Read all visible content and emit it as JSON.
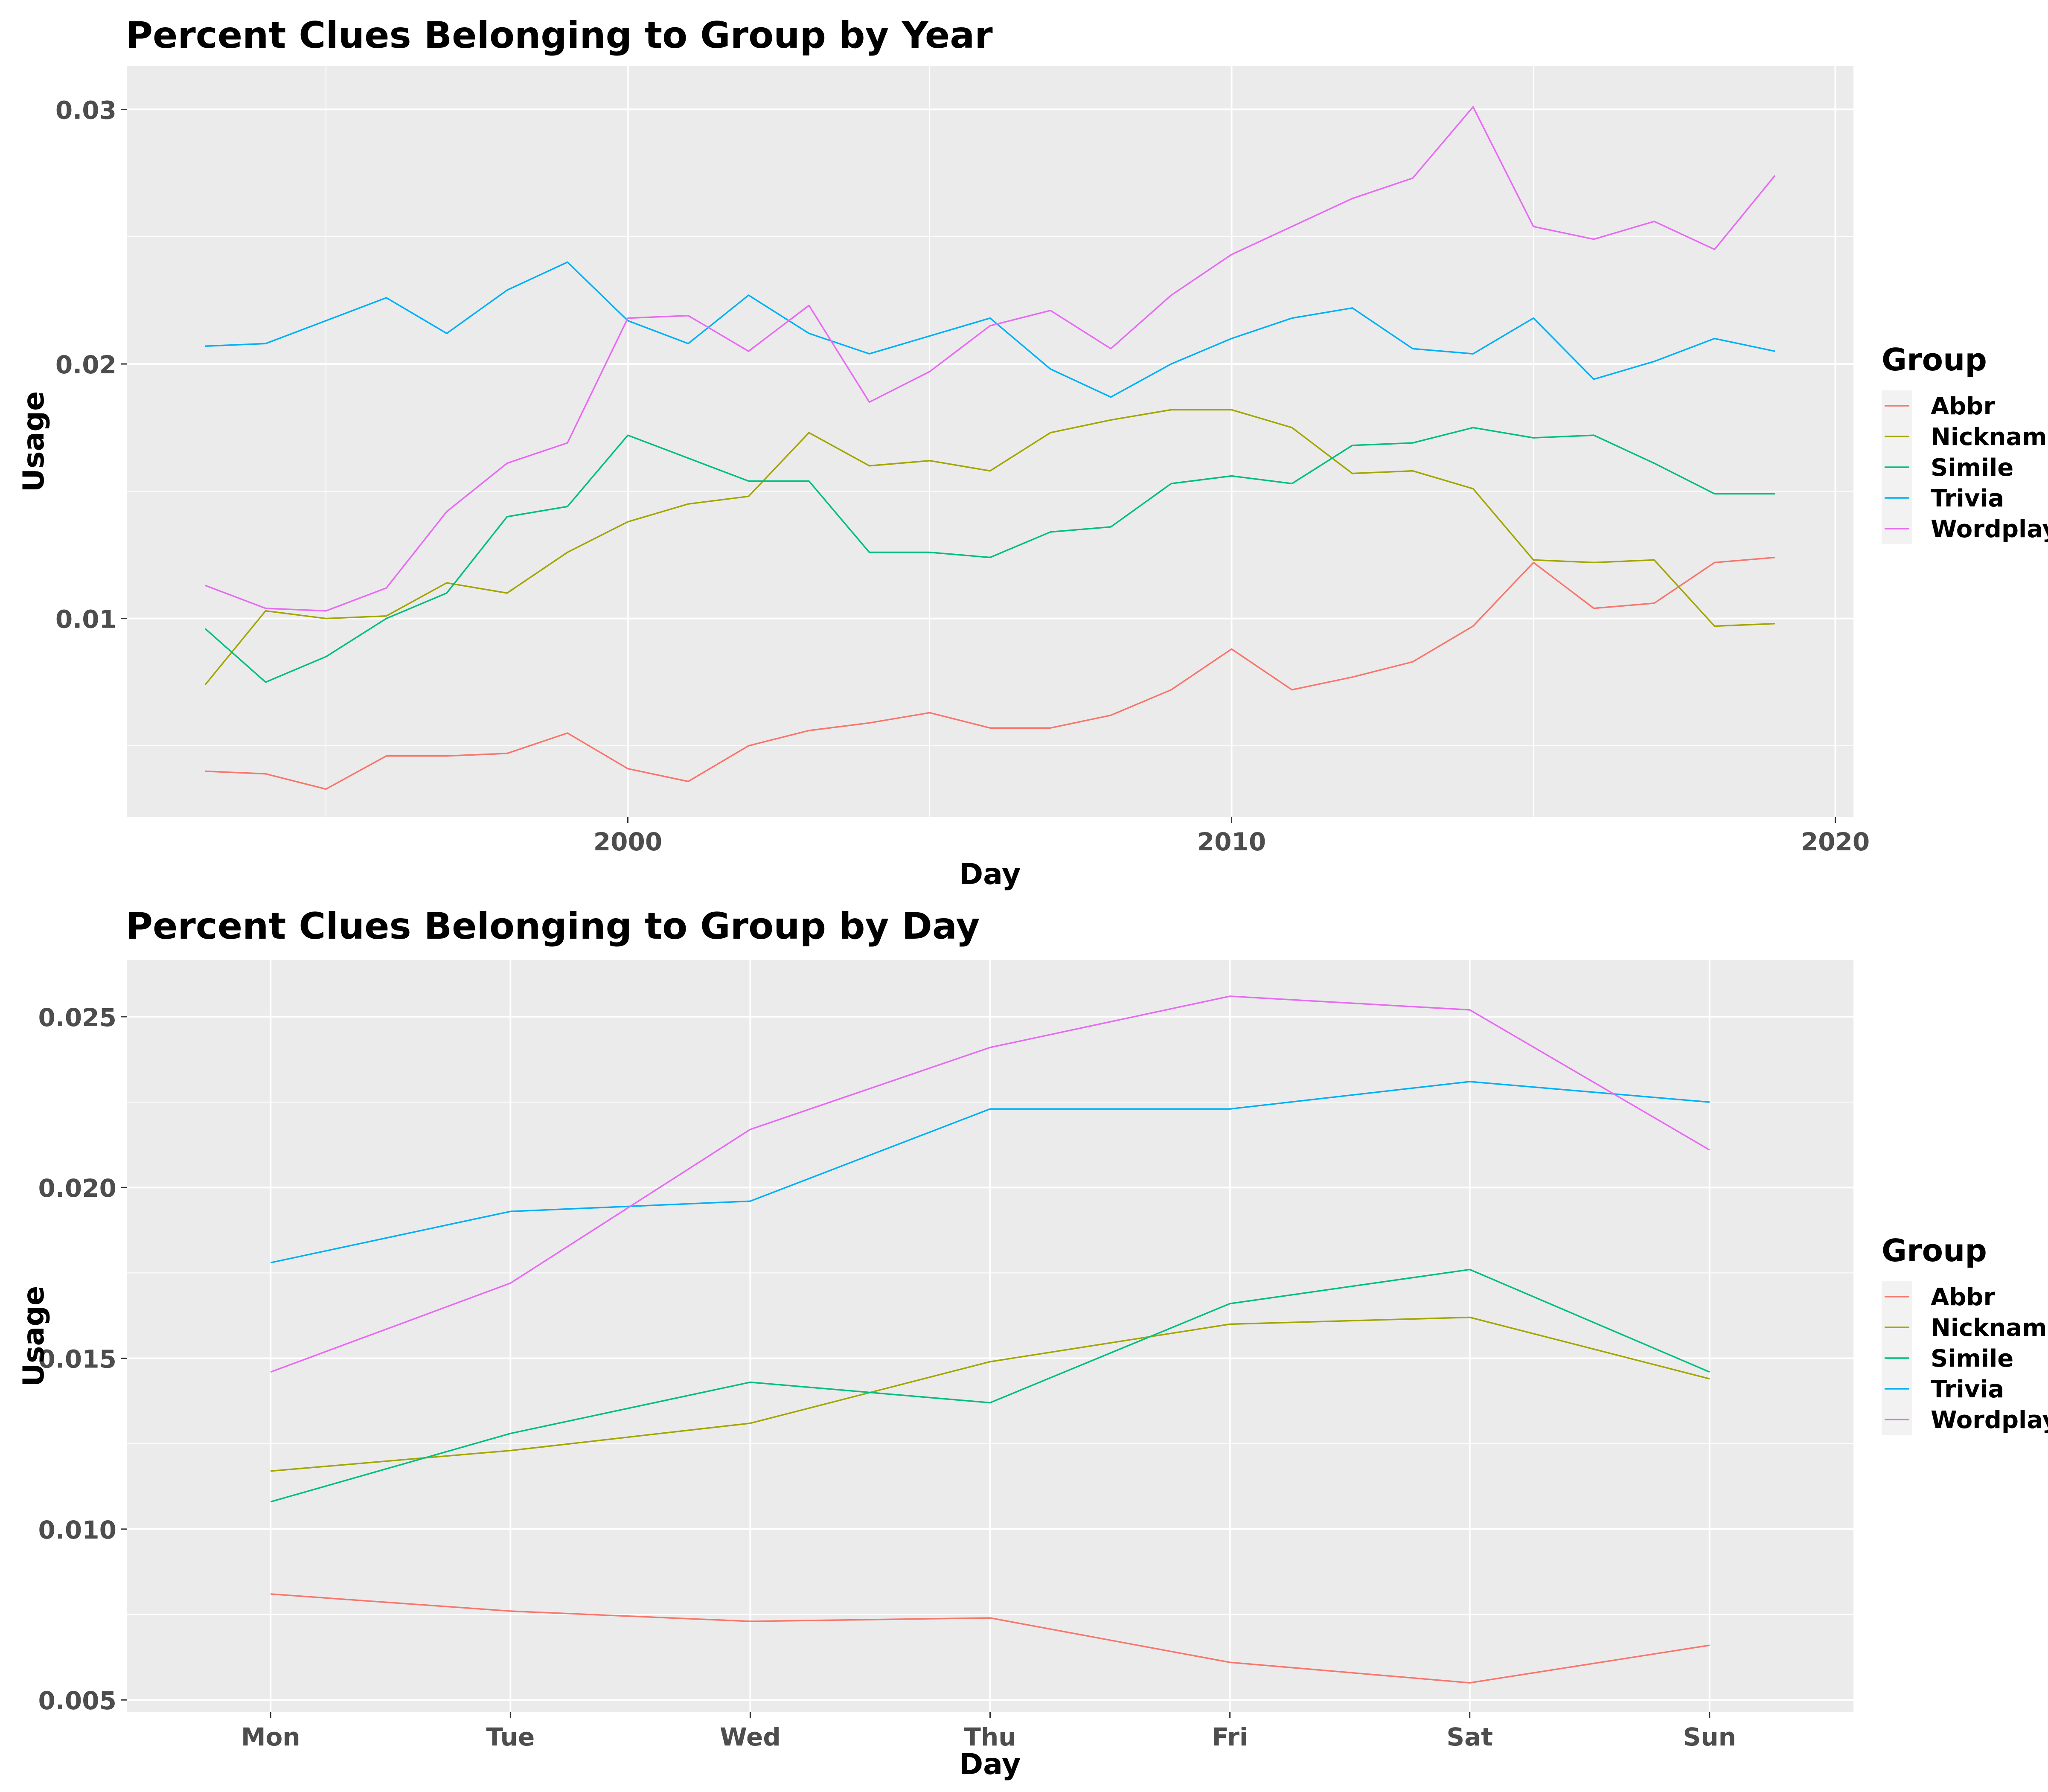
{
  "chart_data": [
    {
      "type": "line",
      "title": "Percent Clues Belonging to Group by Year",
      "xlabel": "Day",
      "ylabel": "Usage",
      "xlim": [
        1991.7,
        2020.3
      ],
      "ylim": [
        0.0022,
        0.0317
      ],
      "x_ticks": [
        2000,
        2010,
        2020
      ],
      "x_tick_labels": [
        "2000",
        "2010",
        "2020"
      ],
      "y_ticks": [
        0.01,
        0.02,
        0.03
      ],
      "y_tick_labels": [
        "0.01",
        "0.02",
        "0.03"
      ],
      "grid": true,
      "legend_title": "Group",
      "legend_position": "right",
      "x": [
        1993,
        1994,
        1995,
        1996,
        1997,
        1998,
        1999,
        2000,
        2001,
        2002,
        2003,
        2004,
        2005,
        2006,
        2007,
        2008,
        2009,
        2010,
        2011,
        2012,
        2013,
        2014,
        2015,
        2016,
        2017,
        2018,
        2019
      ],
      "series": [
        {
          "name": "Abbr",
          "color": "#F8766D",
          "values": [
            0.004,
            0.0039,
            0.0033,
            0.0046,
            0.0046,
            0.0047,
            0.0055,
            0.0041,
            0.0036,
            0.005,
            0.0056,
            0.0059,
            0.0063,
            0.0057,
            0.0057,
            0.0062,
            0.0072,
            0.0088,
            0.0072,
            0.0077,
            0.0083,
            0.0097,
            0.0122,
            0.0104,
            0.0106,
            0.0122,
            0.0124
          ]
        },
        {
          "name": "Nickname",
          "color": "#A3A500",
          "values": [
            0.0074,
            0.0103,
            0.01,
            0.0101,
            0.0114,
            0.011,
            0.0126,
            0.0138,
            0.0145,
            0.0148,
            0.0173,
            0.016,
            0.0162,
            0.0158,
            0.0173,
            0.0178,
            0.0182,
            0.0182,
            0.0175,
            0.0157,
            0.0158,
            0.0151,
            0.0123,
            0.0122,
            0.0123,
            0.0097,
            0.0098
          ]
        },
        {
          "name": "Simile",
          "color": "#00BF7D",
          "values": [
            0.0096,
            0.0075,
            0.0085,
            0.01,
            0.011,
            0.014,
            0.0144,
            0.0172,
            0.0163,
            0.0154,
            0.0154,
            0.0126,
            0.0126,
            0.0124,
            0.0134,
            0.0136,
            0.0153,
            0.0156,
            0.0153,
            0.0168,
            0.0169,
            0.0175,
            0.0171,
            0.0172,
            0.0161,
            0.0149,
            0.0149
          ]
        },
        {
          "name": "Trivia",
          "color": "#00B0F6",
          "values": [
            0.0207,
            0.0208,
            0.0217,
            0.0226,
            0.0212,
            0.0229,
            0.024,
            0.0217,
            0.0208,
            0.0227,
            0.0212,
            0.0204,
            0.0211,
            0.0218,
            0.0198,
            0.0187,
            0.02,
            0.021,
            0.0218,
            0.0222,
            0.0206,
            0.0204,
            0.0218,
            0.0194,
            0.0201,
            0.021,
            0.0205
          ]
        },
        {
          "name": "Wordplay",
          "color": "#E76BF3",
          "values": [
            0.0113,
            0.0104,
            0.0103,
            0.0112,
            0.0142,
            0.0161,
            0.0169,
            0.0218,
            0.0219,
            0.0205,
            0.0223,
            0.0185,
            0.0197,
            0.0215,
            0.0221,
            0.0206,
            0.0227,
            0.0243,
            0.0254,
            0.0265,
            0.0273,
            0.0301,
            0.0254,
            0.0249,
            0.0256,
            0.0245,
            0.0274
          ]
        }
      ]
    },
    {
      "type": "line",
      "title": "Percent Clues Belonging to Group by Day",
      "xlabel": "Day",
      "ylabel": "Usage",
      "categories": [
        "Mon",
        "Tue",
        "Wed",
        "Thu",
        "Fri",
        "Sat",
        "Sun"
      ],
      "ylim": [
        0.00464,
        0.02666
      ],
      "y_ticks": [
        0.005,
        0.01,
        0.015,
        0.02,
        0.025
      ],
      "y_tick_labels": [
        "0.005",
        "0.010",
        "0.015",
        "0.020",
        "0.025"
      ],
      "grid": true,
      "legend_title": "Group",
      "legend_position": "right",
      "series": [
        {
          "name": "Abbr",
          "color": "#F8766D",
          "values": [
            0.0081,
            0.0076,
            0.0073,
            0.0074,
            0.0061,
            0.0055,
            0.0066
          ]
        },
        {
          "name": "Nickname",
          "color": "#A3A500",
          "values": [
            0.0117,
            0.0123,
            0.0131,
            0.0149,
            0.016,
            0.0162,
            0.0144
          ]
        },
        {
          "name": "Simile",
          "color": "#00BF7D",
          "values": [
            0.0108,
            0.0128,
            0.0143,
            0.0137,
            0.0166,
            0.0176,
            0.0146
          ]
        },
        {
          "name": "Trivia",
          "color": "#00B0F6",
          "values": [
            0.0178,
            0.0193,
            0.0196,
            0.0223,
            0.0223,
            0.0231,
            0.0225
          ]
        },
        {
          "name": "Wordplay",
          "color": "#E76BF3",
          "values": [
            0.0146,
            0.0172,
            0.0217,
            0.0241,
            0.0256,
            0.0252,
            0.0211
          ]
        }
      ]
    }
  ]
}
